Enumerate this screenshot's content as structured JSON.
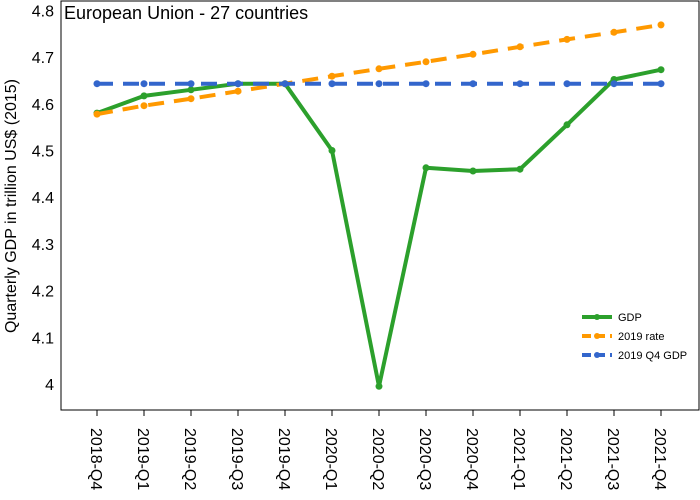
{
  "chart_data": {
    "type": "line",
    "title": "European Union - 27 countries",
    "ylabel": "Quarterly GDP in trillion US$ (2015)",
    "xlabel": "",
    "categories": [
      "2018-Q4",
      "2019-Q1",
      "2019-Q2",
      "2019-Q3",
      "2019-Q4",
      "2020-Q1",
      "2020-Q2",
      "2020-Q3",
      "2020-Q4",
      "2021-Q1",
      "2021-Q2",
      "2021-Q3",
      "2021-Q4"
    ],
    "ylim": [
      3.95,
      4.8
    ],
    "yticks": [
      "4",
      "4.1",
      "4.2",
      "4.3",
      "4.4",
      "4.5",
      "4.6",
      "4.7",
      "4.8"
    ],
    "legend_position": "bottom-right",
    "grid": false,
    "series": [
      {
        "name": "GDP",
        "color": "#2ca02c",
        "dash": "solid",
        "values": [
          4.58,
          4.617,
          4.63,
          4.643,
          4.643,
          4.5,
          3.995,
          4.463,
          4.456,
          4.46,
          4.555,
          4.652,
          4.673
        ]
      },
      {
        "name": "2019 rate",
        "color": "#ff9900",
        "dash": "dashed",
        "values": [
          4.578,
          4.596,
          4.611,
          4.627,
          4.643,
          4.659,
          4.675,
          4.69,
          4.706,
          4.722,
          4.738,
          4.753,
          4.769
        ]
      },
      {
        "name": "2019 Q4 GDP",
        "color": "#3366cc",
        "dash": "dashed",
        "values": [
          4.643,
          4.643,
          4.643,
          4.643,
          4.643,
          4.643,
          4.643,
          4.643,
          4.643,
          4.643,
          4.643,
          4.643,
          4.643
        ]
      }
    ]
  }
}
